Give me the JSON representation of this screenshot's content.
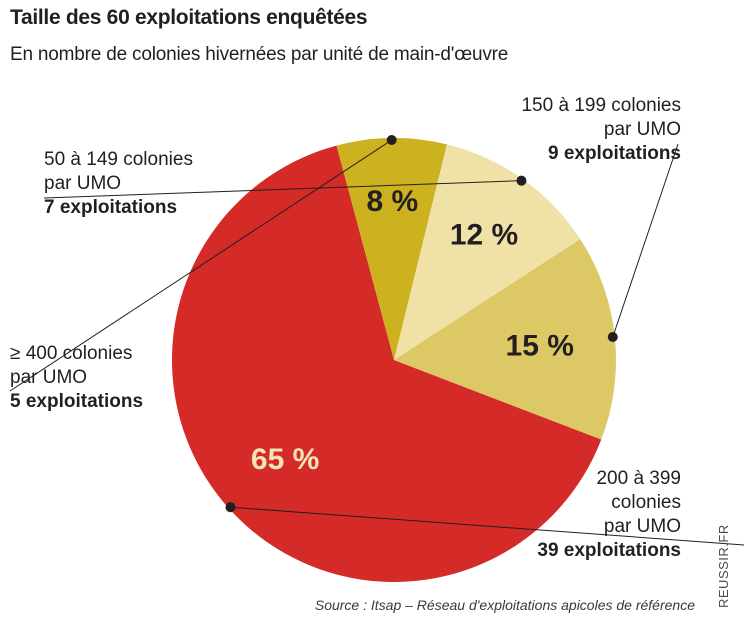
{
  "title": "Taille des 60 exploitations enquêtées",
  "subtitle": "En nombre de colonies hivernées par unité de main-d'œuvre",
  "chart_data": {
    "type": "pie",
    "slices": [
      {
        "category": "200 à 399 colonies par UMO",
        "label_lines": [
          "200 à 399",
          "colonies",
          "par UMO"
        ],
        "count": "39 exploitations",
        "percent": 65,
        "percent_label": "65 %",
        "color": "#d42a28",
        "text_color": "#f4e6b4"
      },
      {
        "category": "≥ 400 colonies par UMO",
        "label_lines": [
          "≥ 400 colonies",
          "par UMO"
        ],
        "count": "5 exploitations",
        "percent": 8,
        "percent_label": "8 %",
        "color": "#cbb21e",
        "text_color": "#231f20"
      },
      {
        "category": "50 à 149 colonies par UMO",
        "label_lines": [
          "50 à 149 colonies",
          "par UMO"
        ],
        "count": "7 exploitations",
        "percent": 12,
        "percent_label": "12 %",
        "color": "#f0e2a6",
        "text_color": "#231f20"
      },
      {
        "category": "150 à 199 colonies par UMO",
        "label_lines": [
          "150 à 199 colonies",
          "par UMO"
        ],
        "count": "9 exploitations",
        "percent": 15,
        "percent_label": "15 %",
        "color": "#ddc866",
        "text_color": "#231f20"
      }
    ]
  },
  "source": "Source : Itsap – Réseau d'exploitations apicoles de référence",
  "watermark": "REUSSIR.FR"
}
